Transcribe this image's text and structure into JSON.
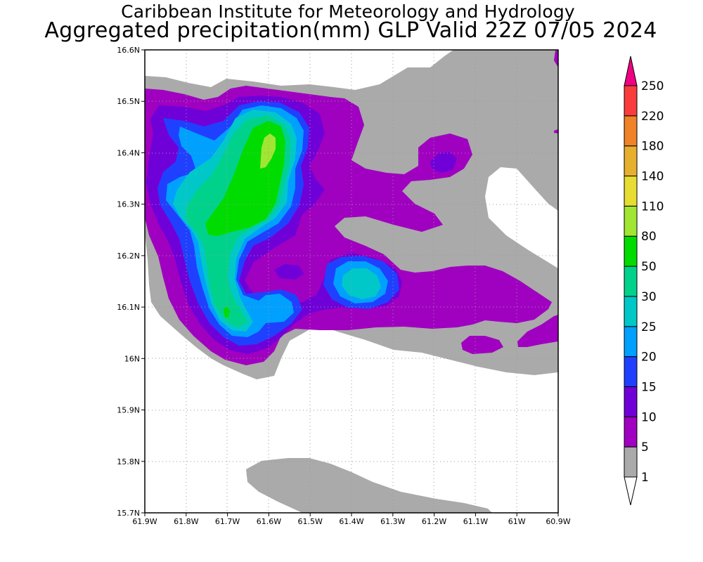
{
  "header": {
    "line1": "Caribbean Institute for Meteorology and Hydrology",
    "line2": "Aggregated precipitation(mm) GLP Valid 22Z 07/05 2024"
  },
  "map": {
    "lon_range": [
      -61.9,
      -60.9
    ],
    "lat_range": [
      15.7,
      16.6
    ],
    "lon_ticks": [
      {
        "value": -61.9,
        "label": "61.9W"
      },
      {
        "value": -61.8,
        "label": "61.8W"
      },
      {
        "value": -61.7,
        "label": "61.7W"
      },
      {
        "value": -61.6,
        "label": "61.6W"
      },
      {
        "value": -61.5,
        "label": "61.5W"
      },
      {
        "value": -61.4,
        "label": "61.4W"
      },
      {
        "value": -61.3,
        "label": "61.3W"
      },
      {
        "value": -61.2,
        "label": "61.2W"
      },
      {
        "value": -61.1,
        "label": "61.1W"
      },
      {
        "value": -61.0,
        "label": "61W"
      },
      {
        "value": -60.9,
        "label": "60.9W"
      }
    ],
    "lat_ticks": [
      {
        "value": 16.6,
        "label": "16.6N"
      },
      {
        "value": 16.5,
        "label": "16.5N"
      },
      {
        "value": 16.4,
        "label": "16.4N"
      },
      {
        "value": 16.3,
        "label": "16.3N"
      },
      {
        "value": 16.2,
        "label": "16.2N"
      },
      {
        "value": 16.1,
        "label": "16.1N"
      },
      {
        "value": 16.0,
        "label": "16N"
      },
      {
        "value": 15.9,
        "label": "15.9N"
      },
      {
        "value": 15.8,
        "label": "15.8N"
      },
      {
        "value": 15.7,
        "label": "15.7N"
      }
    ],
    "grid": "dotted"
  },
  "colorbar": {
    "levels": [
      "1",
      "5",
      "10",
      "15",
      "20",
      "25",
      "30",
      "50",
      "80",
      "110",
      "140",
      "180",
      "220",
      "250"
    ],
    "colors": [
      "#aaaaaa",
      "#a000c0",
      "#7000d8",
      "#2040ff",
      "#00a0ff",
      "#00c8c8",
      "#00d28c",
      "#00dc00",
      "#a0e632",
      "#e6dc32",
      "#e6af2d",
      "#f08228",
      "#fa3c3c",
      "#f00082"
    ],
    "below_min_color": "#ffffff"
  },
  "legend_colors": {
    "gray": "#aaaaaa",
    "purple": "#a000c0",
    "violet": "#7000d8",
    "blue": "#2040ff",
    "lightblue": "#00a0ff",
    "cyan": "#00c8c8",
    "teal": "#00d28c",
    "green": "#00dc00",
    "yellowgreen": "#a0e632"
  }
}
